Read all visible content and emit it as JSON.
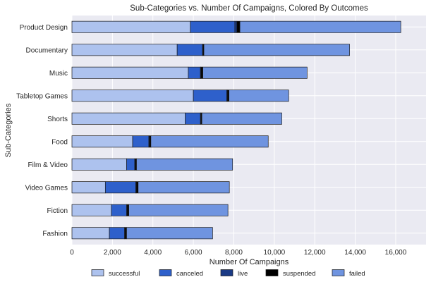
{
  "chart_data": {
    "type": "bar",
    "orientation": "horizontal",
    "stacked": true,
    "title": "Sub-Categories vs. Number Of Campaigns, Colored By Outcomes",
    "xlabel": "Number Of Campaigns",
    "ylabel": "Sub-Categories",
    "xlim": [
      0,
      17500
    ],
    "x_ticks": [
      0,
      2000,
      4000,
      6000,
      8000,
      10000,
      12000,
      14000,
      16000
    ],
    "x_tick_labels": [
      "0",
      "2,000",
      "4,000",
      "6,000",
      "8,000",
      "10,000",
      "12,000",
      "14,000",
      "16,000"
    ],
    "grid": true,
    "legend_position": "bottom",
    "categories": [
      "Product Design",
      "Documentary",
      "Music",
      "Tabletop Games",
      "Shorts",
      "Food",
      "Film & Video",
      "Video Games",
      "Fiction",
      "Fashion"
    ],
    "series": [
      {
        "name": "successful",
        "color": "#adc2ee",
        "values": [
          5850,
          5200,
          5750,
          6000,
          5600,
          3000,
          2700,
          1650,
          1950,
          1850
        ]
      },
      {
        "name": "canceled",
        "color": "#2e60cb",
        "values": [
          2200,
          1250,
          600,
          1650,
          750,
          800,
          400,
          1500,
          750,
          750
        ]
      },
      {
        "name": "live",
        "color": "#1a3a85",
        "values": [
          100,
          30,
          30,
          30,
          30,
          30,
          30,
          30,
          30,
          30
        ]
      },
      {
        "name": "suspended",
        "color": "#000000",
        "values": [
          150,
          40,
          90,
          80,
          40,
          70,
          60,
          90,
          80,
          70
        ]
      },
      {
        "name": "failed",
        "color": "#6f94e0",
        "values": [
          7950,
          7200,
          5150,
          2950,
          3950,
          5800,
          4750,
          4510,
          4900,
          4250
        ]
      }
    ]
  }
}
